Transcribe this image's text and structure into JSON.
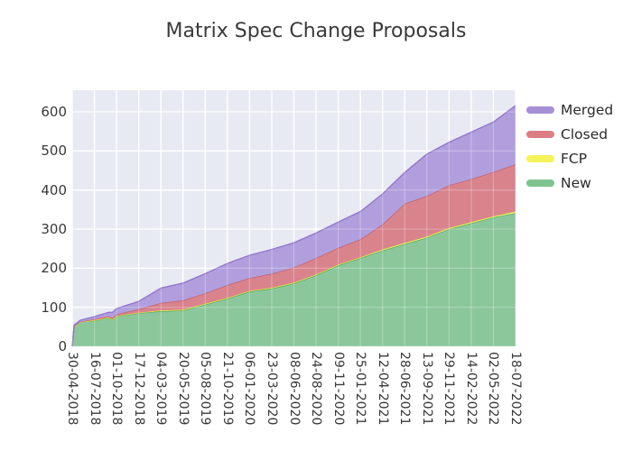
{
  "title": "Matrix Spec Change Proposals",
  "plot": {
    "background_color": "#e8eaf3",
    "grid_color": "#ffffff",
    "text_color": "#3a3a3a"
  },
  "legend": {
    "items": [
      {
        "label": "Merged",
        "swatch_color": "#a78fd6"
      },
      {
        "label": "Closed",
        "swatch_color": "#dd7d83"
      },
      {
        "label": "FCP",
        "swatch_color": "#f5f359"
      },
      {
        "label": "New",
        "swatch_color": "#7dc492"
      }
    ]
  },
  "chart_data": {
    "type": "area",
    "stacked": true,
    "title": "Matrix Spec Change Proposals",
    "xlabel": "",
    "ylabel": "",
    "ylim": [
      0,
      650
    ],
    "grid": true,
    "legend_position": "outside upper right",
    "y_ticks": [
      0,
      100,
      200,
      300,
      400,
      500,
      600
    ],
    "x_tick_labels": [
      "30-04-2018",
      "16-07-2018",
      "01-10-2018",
      "17-12-2018",
      "04-03-2019",
      "20-05-2019",
      "05-08-2019",
      "21-10-2019",
      "06-01-2020",
      "23-03-2020",
      "08-06-2020",
      "24-08-2020",
      "09-11-2020",
      "25-01-2021",
      "12-04-2021",
      "28-06-2021",
      "13-09-2021",
      "29-11-2021",
      "14-02-2022",
      "02-05-2022",
      "18-07-2022"
    ],
    "x": [
      "30-04-2018",
      "07-05-2018",
      "28-05-2018",
      "16-07-2018",
      "03-09-2018",
      "17-09-2018",
      "01-10-2018",
      "17-12-2018",
      "04-03-2019",
      "20-05-2019",
      "05-08-2019",
      "21-10-2019",
      "06-01-2020",
      "23-03-2020",
      "08-06-2020",
      "24-08-2020",
      "09-11-2020",
      "25-01-2021",
      "12-04-2021",
      "28-06-2021",
      "13-09-2021",
      "29-11-2021",
      "14-02-2022",
      "02-05-2022",
      "18-07-2022"
    ],
    "series": [
      {
        "name": "New",
        "fill_color": "#8cc79c",
        "line_color": "#46a567",
        "values": [
          0,
          52,
          62,
          66,
          73,
          68,
          77,
          85,
          90,
          92,
          107,
          122,
          140,
          148,
          161,
          182,
          207,
          226,
          245,
          262,
          278,
          300,
          315,
          330,
          341
        ]
      },
      {
        "name": "FCP",
        "fill_color": "#f4f478",
        "line_color": "#e3e33e",
        "values": [
          0,
          0,
          0,
          1,
          1,
          1,
          1,
          1,
          2,
          2,
          2,
          2,
          2,
          2,
          2,
          2,
          2,
          2,
          3,
          3,
          3,
          3,
          3,
          3,
          4
        ]
      },
      {
        "name": "Closed",
        "fill_color": "#d9838d",
        "line_color": "#c05f68",
        "values": [
          0,
          1,
          1,
          3,
          3,
          4,
          4,
          9,
          19,
          24,
          27,
          33,
          33,
          36,
          39,
          42,
          43,
          46,
          64,
          100,
          104,
          109,
          110,
          113,
          121
        ]
      },
      {
        "name": "Merged",
        "fill_color": "#b19fdd",
        "line_color": "#9277cc",
        "values": [
          0,
          2,
          4,
          6,
          10,
          14,
          15,
          20,
          38,
          44,
          50,
          55,
          58,
          62,
          63,
          64,
          66,
          71,
          78,
          80,
          107,
          110,
          120,
          128,
          150
        ]
      }
    ]
  }
}
